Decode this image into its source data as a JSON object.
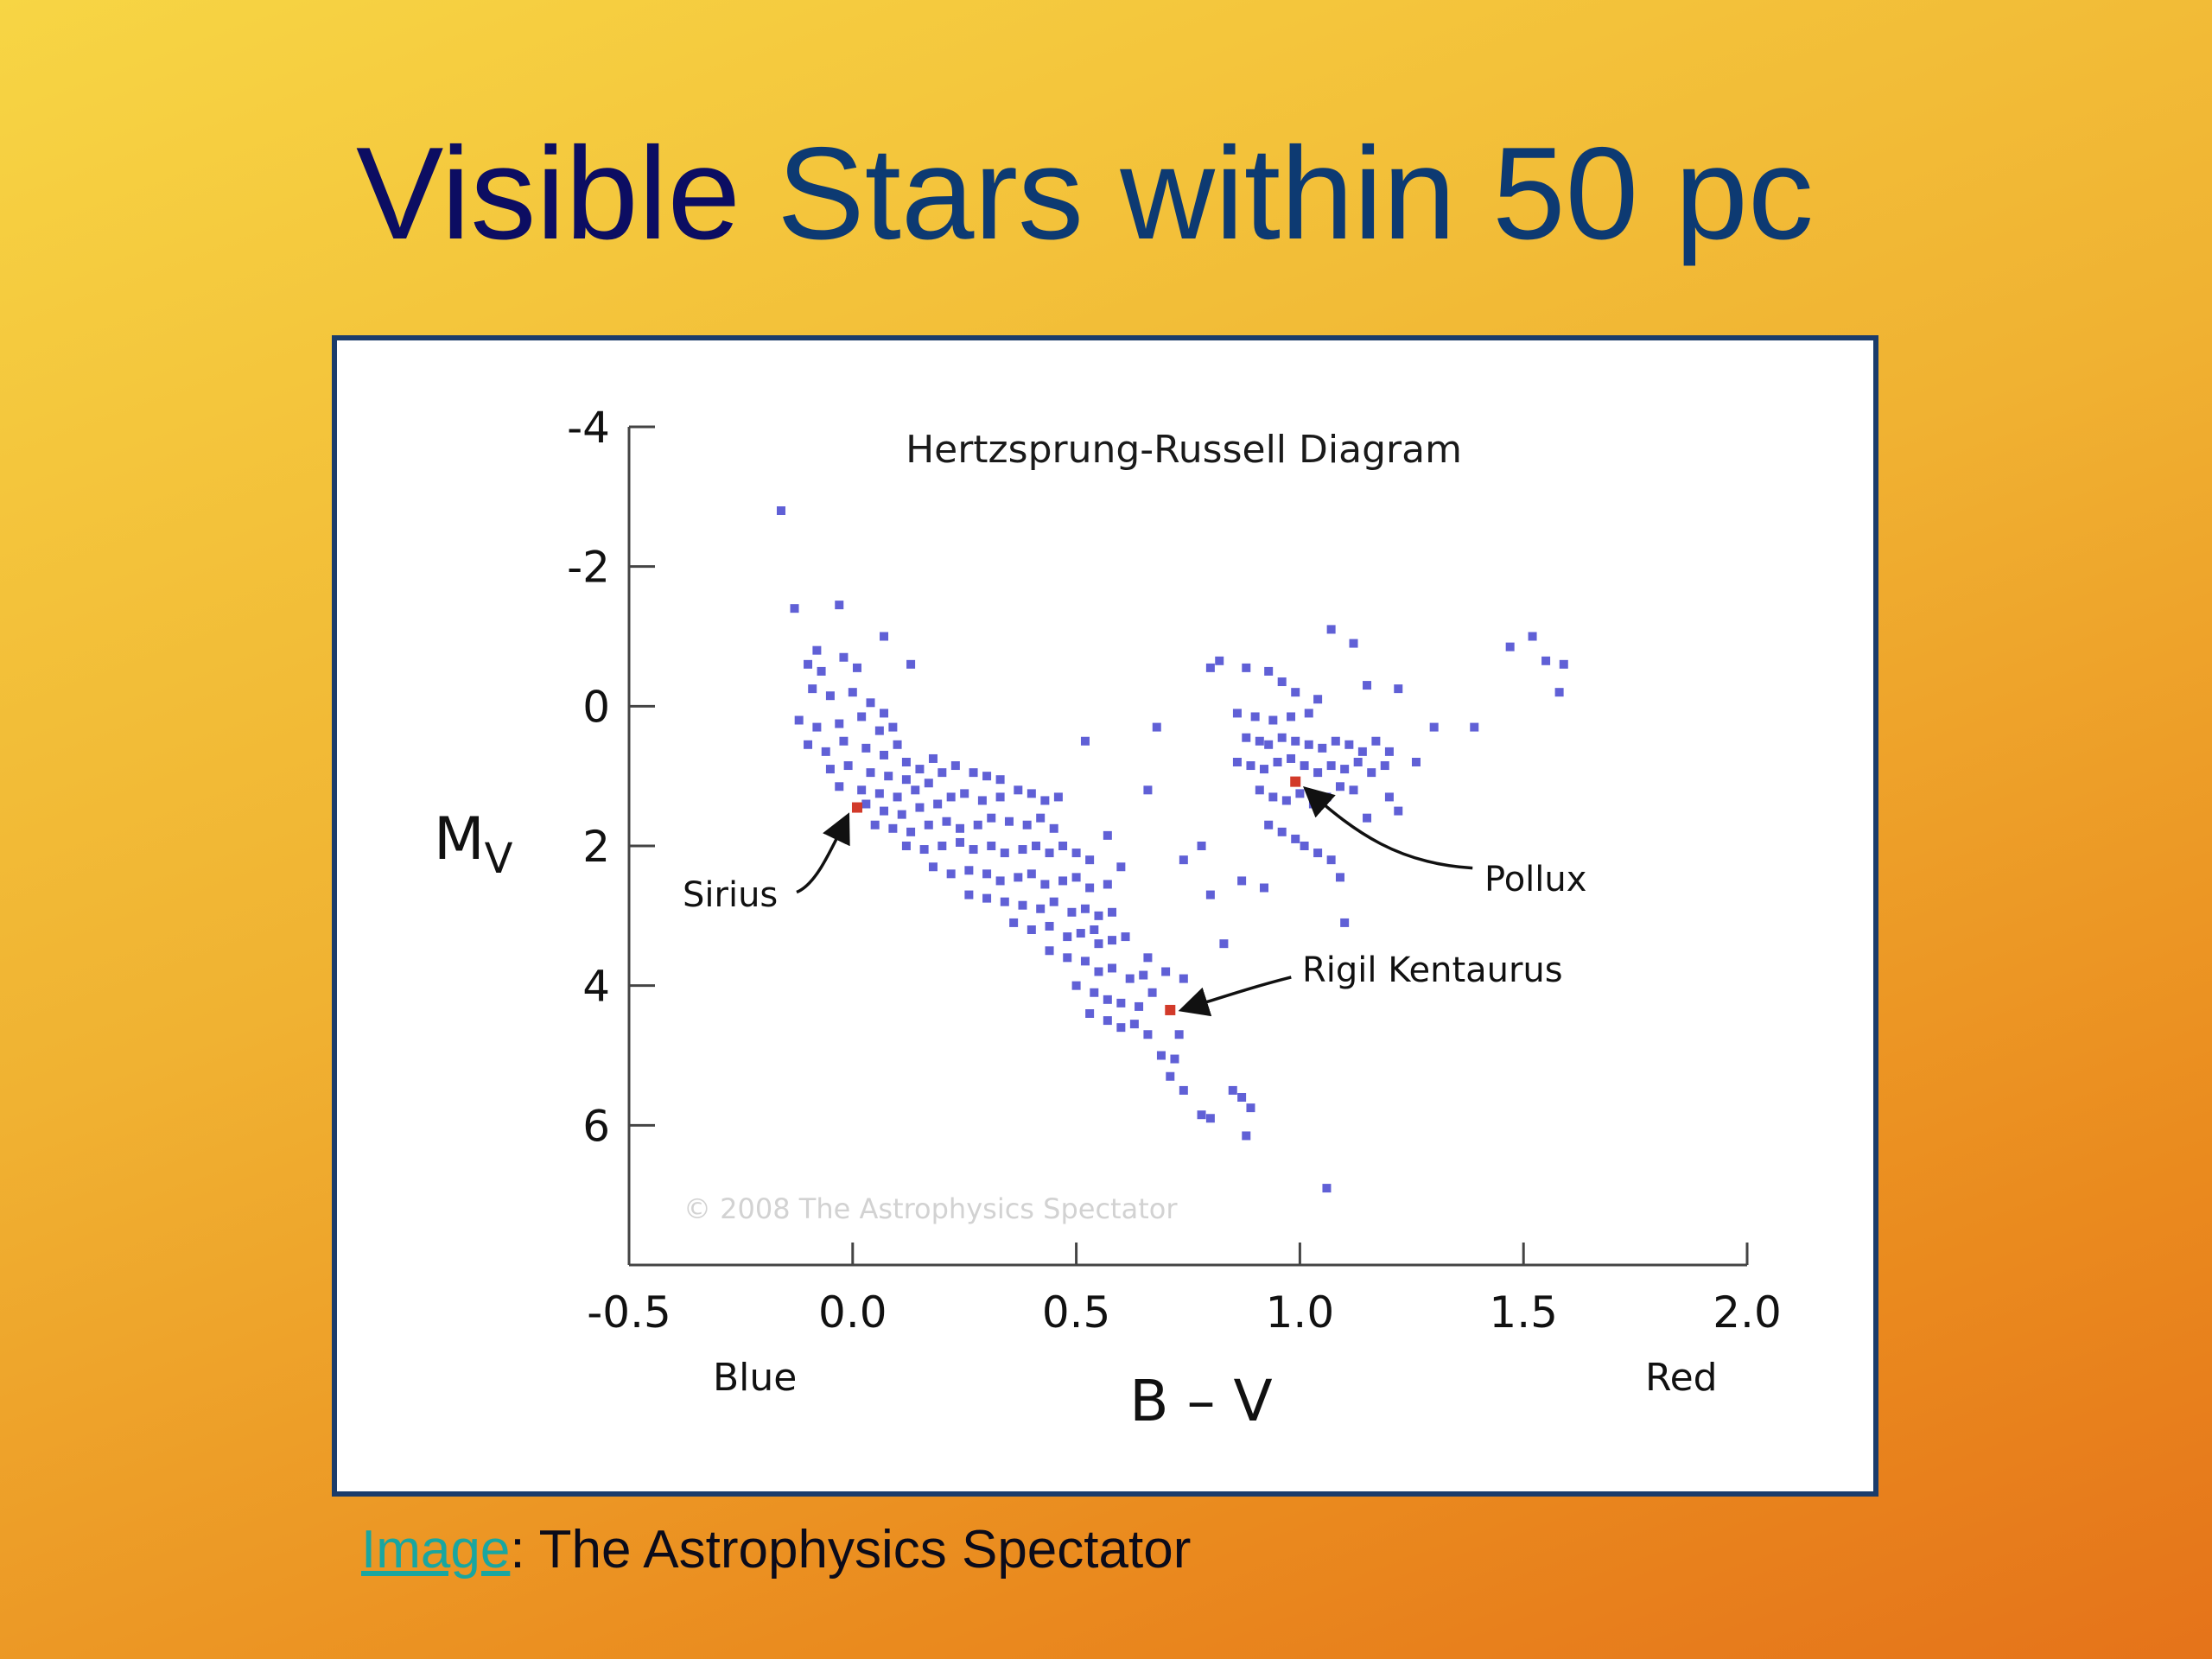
{
  "slide": {
    "title_part1": "Visible",
    "title_part2": "Stars within 50 pc",
    "caption_link": "Image",
    "caption_rest": ": The Astrophysics Spectator"
  },
  "colors": {
    "title_dark": "#0c0d62",
    "title_blue": "#0d3a72",
    "point": "#2b2bc8",
    "highlight": "#d23a2a",
    "frame": "#1b3c6b",
    "link": "#19a6a0"
  },
  "chart_data": {
    "type": "scatter",
    "title": "Hertzsprung-Russell Diagram",
    "xlabel": "B – V",
    "ylabel_main": "M",
    "ylabel_sub": "V",
    "x_left_note": "Blue",
    "x_right_note": "Red",
    "watermark": "© 2008 The Astrophysics Spectator",
    "xlim": [
      -0.5,
      2.0
    ],
    "ylim": [
      8,
      -4
    ],
    "xticks": [
      -0.5,
      0.0,
      0.5,
      1.0,
      1.5,
      2.0
    ],
    "xtick_labels": [
      "-0.5",
      "0.0",
      "0.5",
      "1.0",
      "1.5",
      "2.0"
    ],
    "yticks": [
      -4,
      -2,
      0,
      2,
      4,
      6
    ],
    "ytick_labels": [
      "-4",
      "-2",
      "0",
      "2",
      "4",
      "6"
    ],
    "grid": false,
    "highlighted_stars": [
      {
        "name": "Sirius",
        "x": 0.01,
        "y": 1.45
      },
      {
        "name": "Pollux",
        "x": 0.99,
        "y": 1.08
      },
      {
        "name": "Rigil Kentaurus",
        "x": 0.71,
        "y": 4.35
      }
    ],
    "points": [
      [
        -0.16,
        -2.8
      ],
      [
        -0.13,
        -1.4
      ],
      [
        -0.03,
        -1.45
      ],
      [
        -0.08,
        -0.8
      ],
      [
        -0.1,
        -0.6
      ],
      [
        -0.07,
        -0.5
      ],
      [
        -0.02,
        -0.7
      ],
      [
        0.01,
        -0.55
      ],
      [
        0.07,
        -1.0
      ],
      [
        0.13,
        -0.6
      ],
      [
        -0.09,
        -0.25
      ],
      [
        -0.05,
        -0.15
      ],
      [
        0.0,
        -0.2
      ],
      [
        0.04,
        -0.05
      ],
      [
        0.07,
        0.1
      ],
      [
        -0.12,
        0.2
      ],
      [
        -0.08,
        0.3
      ],
      [
        -0.03,
        0.25
      ],
      [
        0.02,
        0.15
      ],
      [
        0.06,
        0.35
      ],
      [
        0.09,
        0.3
      ],
      [
        -0.1,
        0.55
      ],
      [
        -0.06,
        0.65
      ],
      [
        -0.02,
        0.5
      ],
      [
        0.03,
        0.6
      ],
      [
        0.07,
        0.7
      ],
      [
        0.1,
        0.55
      ],
      [
        0.12,
        0.8
      ],
      [
        -0.05,
        0.9
      ],
      [
        -0.01,
        0.85
      ],
      [
        0.04,
        0.95
      ],
      [
        0.08,
        1.0
      ],
      [
        0.12,
        1.05
      ],
      [
        0.15,
        0.9
      ],
      [
        0.18,
        0.75
      ],
      [
        -0.03,
        1.15
      ],
      [
        0.02,
        1.2
      ],
      [
        0.06,
        1.25
      ],
      [
        0.1,
        1.3
      ],
      [
        0.14,
        1.2
      ],
      [
        0.17,
        1.1
      ],
      [
        0.2,
        0.95
      ],
      [
        0.23,
        0.85
      ],
      [
        0.27,
        0.95
      ],
      [
        0.3,
        1.0
      ],
      [
        0.33,
        1.05
      ],
      [
        0.03,
        1.4
      ],
      [
        0.07,
        1.5
      ],
      [
        0.11,
        1.55
      ],
      [
        0.15,
        1.45
      ],
      [
        0.19,
        1.4
      ],
      [
        0.22,
        1.3
      ],
      [
        0.25,
        1.25
      ],
      [
        0.29,
        1.35
      ],
      [
        0.33,
        1.3
      ],
      [
        0.37,
        1.2
      ],
      [
        0.4,
        1.25
      ],
      [
        0.43,
        1.35
      ],
      [
        0.46,
        1.3
      ],
      [
        0.05,
        1.7
      ],
      [
        0.09,
        1.75
      ],
      [
        0.13,
        1.8
      ],
      [
        0.17,
        1.7
      ],
      [
        0.21,
        1.65
      ],
      [
        0.24,
        1.75
      ],
      [
        0.28,
        1.7
      ],
      [
        0.31,
        1.6
      ],
      [
        0.35,
        1.65
      ],
      [
        0.39,
        1.7
      ],
      [
        0.42,
        1.6
      ],
      [
        0.45,
        1.75
      ],
      [
        0.12,
        2.0
      ],
      [
        0.16,
        2.05
      ],
      [
        0.2,
        2.0
      ],
      [
        0.24,
        1.95
      ],
      [
        0.27,
        2.05
      ],
      [
        0.31,
        2.0
      ],
      [
        0.34,
        2.1
      ],
      [
        0.38,
        2.05
      ],
      [
        0.41,
        2.0
      ],
      [
        0.44,
        2.1
      ],
      [
        0.47,
        2.0
      ],
      [
        0.5,
        2.1
      ],
      [
        0.53,
        2.2
      ],
      [
        0.18,
        2.3
      ],
      [
        0.22,
        2.4
      ],
      [
        0.26,
        2.35
      ],
      [
        0.3,
        2.4
      ],
      [
        0.33,
        2.5
      ],
      [
        0.37,
        2.45
      ],
      [
        0.4,
        2.4
      ],
      [
        0.43,
        2.55
      ],
      [
        0.47,
        2.5
      ],
      [
        0.5,
        2.45
      ],
      [
        0.53,
        2.6
      ],
      [
        0.57,
        2.55
      ],
      [
        0.26,
        2.7
      ],
      [
        0.3,
        2.75
      ],
      [
        0.34,
        2.8
      ],
      [
        0.38,
        2.85
      ],
      [
        0.42,
        2.9
      ],
      [
        0.45,
        2.8
      ],
      [
        0.49,
        2.95
      ],
      [
        0.52,
        2.9
      ],
      [
        0.55,
        3.0
      ],
      [
        0.58,
        2.95
      ],
      [
        0.36,
        3.1
      ],
      [
        0.4,
        3.2
      ],
      [
        0.44,
        3.15
      ],
      [
        0.48,
        3.3
      ],
      [
        0.51,
        3.25
      ],
      [
        0.55,
        3.4
      ],
      [
        0.58,
        3.35
      ],
      [
        0.61,
        3.3
      ],
      [
        0.44,
        3.5
      ],
      [
        0.48,
        3.6
      ],
      [
        0.52,
        3.65
      ],
      [
        0.55,
        3.8
      ],
      [
        0.58,
        3.75
      ],
      [
        0.62,
        3.9
      ],
      [
        0.65,
        3.85
      ],
      [
        0.5,
        4.0
      ],
      [
        0.54,
        4.1
      ],
      [
        0.57,
        4.2
      ],
      [
        0.6,
        4.25
      ],
      [
        0.64,
        4.3
      ],
      [
        0.67,
        4.1
      ],
      [
        0.53,
        4.4
      ],
      [
        0.57,
        4.5
      ],
      [
        0.6,
        4.6
      ],
      [
        0.63,
        4.55
      ],
      [
        0.66,
        4.7
      ],
      [
        0.54,
        3.2
      ],
      [
        0.6,
        2.3
      ],
      [
        0.57,
        1.85
      ],
      [
        0.52,
        0.5
      ],
      [
        0.68,
        0.3
      ],
      [
        0.66,
        1.2
      ],
      [
        0.66,
        3.6
      ],
      [
        0.7,
        3.8
      ],
      [
        0.74,
        3.9
      ],
      [
        0.73,
        4.7
      ],
      [
        0.69,
        5.0
      ],
      [
        0.72,
        5.05
      ],
      [
        0.71,
        5.3
      ],
      [
        0.74,
        5.5
      ],
      [
        0.78,
        5.85
      ],
      [
        0.8,
        5.9
      ],
      [
        0.85,
        5.5
      ],
      [
        0.87,
        5.6
      ],
      [
        0.89,
        5.75
      ],
      [
        0.88,
        6.15
      ],
      [
        1.06,
        6.9
      ],
      [
        0.74,
        2.2
      ],
      [
        0.78,
        2.0
      ],
      [
        0.8,
        2.7
      ],
      [
        0.83,
        3.4
      ],
      [
        0.87,
        2.5
      ],
      [
        0.92,
        2.6
      ],
      [
        0.82,
        -0.65
      ],
      [
        0.8,
        -0.55
      ],
      [
        0.88,
        -0.55
      ],
      [
        0.93,
        -0.5
      ],
      [
        1.07,
        -1.1
      ],
      [
        1.12,
        -0.9
      ],
      [
        1.15,
        -0.3
      ],
      [
        1.22,
        -0.25
      ],
      [
        0.86,
        0.1
      ],
      [
        0.9,
        0.15
      ],
      [
        0.94,
        0.2
      ],
      [
        0.98,
        0.15
      ],
      [
        1.02,
        0.1
      ],
      [
        0.96,
        -0.35
      ],
      [
        0.99,
        -0.2
      ],
      [
        1.04,
        -0.1
      ],
      [
        0.88,
        0.45
      ],
      [
        0.91,
        0.5
      ],
      [
        0.93,
        0.55
      ],
      [
        0.96,
        0.45
      ],
      [
        0.99,
        0.5
      ],
      [
        1.02,
        0.55
      ],
      [
        1.05,
        0.6
      ],
      [
        1.08,
        0.5
      ],
      [
        1.11,
        0.55
      ],
      [
        1.14,
        0.65
      ],
      [
        0.86,
        0.8
      ],
      [
        0.89,
        0.85
      ],
      [
        0.92,
        0.9
      ],
      [
        0.95,
        0.8
      ],
      [
        0.98,
        0.75
      ],
      [
        1.01,
        0.85
      ],
      [
        1.04,
        0.95
      ],
      [
        1.07,
        0.85
      ],
      [
        1.1,
        0.9
      ],
      [
        1.13,
        0.8
      ],
      [
        1.16,
        0.95
      ],
      [
        1.19,
        0.85
      ],
      [
        0.91,
        1.2
      ],
      [
        0.94,
        1.3
      ],
      [
        0.97,
        1.35
      ],
      [
        1.0,
        1.25
      ],
      [
        1.03,
        1.4
      ],
      [
        1.06,
        1.3
      ],
      [
        1.09,
        1.15
      ],
      [
        1.12,
        1.2
      ],
      [
        0.93,
        1.7
      ],
      [
        0.96,
        1.8
      ],
      [
        0.99,
        1.9
      ],
      [
        1.01,
        2.0
      ],
      [
        1.04,
        2.1
      ],
      [
        1.07,
        2.2
      ],
      [
        1.09,
        2.45
      ],
      [
        1.1,
        3.1
      ],
      [
        1.17,
        0.5
      ],
      [
        1.2,
        0.65
      ],
      [
        1.26,
        0.8
      ],
      [
        1.3,
        0.3
      ],
      [
        1.39,
        0.3
      ],
      [
        1.22,
        1.5
      ],
      [
        1.2,
        1.3
      ],
      [
        1.15,
        1.6
      ],
      [
        1.47,
        -0.85
      ],
      [
        1.52,
        -1.0
      ],
      [
        1.55,
        -0.65
      ],
      [
        1.59,
        -0.6
      ],
      [
        1.58,
        -0.2
      ]
    ]
  }
}
